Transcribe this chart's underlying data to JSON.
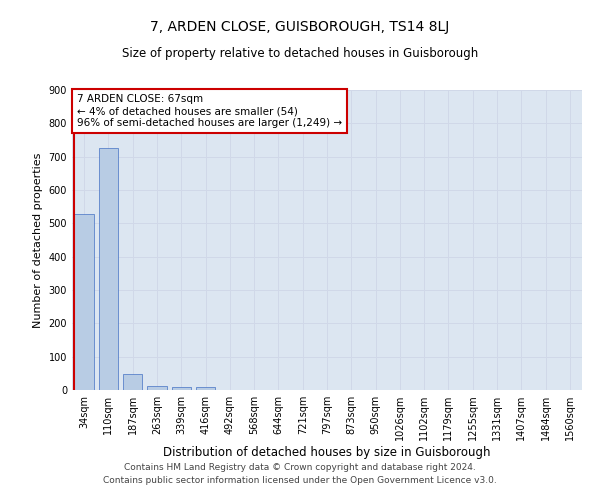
{
  "title": "7, ARDEN CLOSE, GUISBOROUGH, TS14 8LJ",
  "subtitle": "Size of property relative to detached houses in Guisborough",
  "xlabel": "Distribution of detached houses by size in Guisborough",
  "ylabel": "Number of detached properties",
  "categories": [
    "34sqm",
    "110sqm",
    "187sqm",
    "263sqm",
    "339sqm",
    "416sqm",
    "492sqm",
    "568sqm",
    "644sqm",
    "721sqm",
    "797sqm",
    "873sqm",
    "950sqm",
    "1026sqm",
    "1102sqm",
    "1179sqm",
    "1255sqm",
    "1331sqm",
    "1407sqm",
    "1484sqm",
    "1560sqm"
  ],
  "values": [
    528,
    727,
    48,
    12,
    10,
    10,
    0,
    0,
    0,
    0,
    0,
    0,
    0,
    0,
    0,
    0,
    0,
    0,
    0,
    0,
    0
  ],
  "bar_color": "#b8cce4",
  "bar_edge_color": "#4472c4",
  "grid_color": "#d0d8e8",
  "background_color": "#dce6f1",
  "annotation_line1": "7 ARDEN CLOSE: 67sqm",
  "annotation_line2": "← 4% of detached houses are smaller (54)",
  "annotation_line3": "96% of semi-detached houses are larger (1,249) →",
  "annotation_box_color": "#ffffff",
  "annotation_box_edge_color": "#cc0000",
  "vline_color": "#cc0000",
  "ylim": [
    0,
    900
  ],
  "yticks": [
    0,
    100,
    200,
    300,
    400,
    500,
    600,
    700,
    800,
    900
  ],
  "footer_line1": "Contains HM Land Registry data © Crown copyright and database right 2024.",
  "footer_line2": "Contains public sector information licensed under the Open Government Licence v3.0.",
  "title_fontsize": 10,
  "subtitle_fontsize": 8.5,
  "xlabel_fontsize": 8.5,
  "ylabel_fontsize": 8,
  "tick_fontsize": 7,
  "annotation_fontsize": 7.5,
  "footer_fontsize": 6.5
}
